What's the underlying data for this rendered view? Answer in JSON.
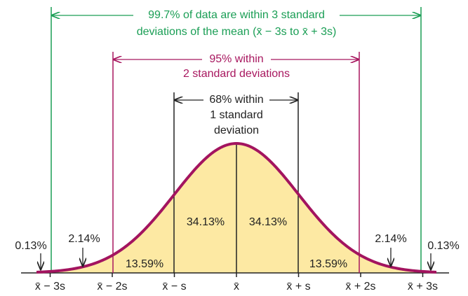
{
  "annotations": {
    "three_sd": {
      "lines": [
        "99.7% of data are within 3 standard",
        "deviations of the mean (x̄ − 3s to x̄ + 3s)"
      ]
    },
    "two_sd": {
      "lines": [
        "95% within",
        "2 standard deviations"
      ]
    },
    "one_sd": {
      "lines": [
        "68% within",
        "1 standard",
        "deviation"
      ]
    }
  },
  "regions": {
    "left_tail": "0.13%",
    "left_2_3": "2.14%",
    "left_1_2": "13.59%",
    "left_0_1": "34.13%",
    "right_0_1": "34.13%",
    "right_1_2": "13.59%",
    "right_2_3": "2.14%",
    "right_tail": "0.13%"
  },
  "axis_labels": [
    "x̄ − 3s",
    "x̄ − 2s",
    "x̄ − s",
    "x̄",
    "x̄ + s",
    "x̄ + 2s",
    "x̄ + 3s"
  ]
}
